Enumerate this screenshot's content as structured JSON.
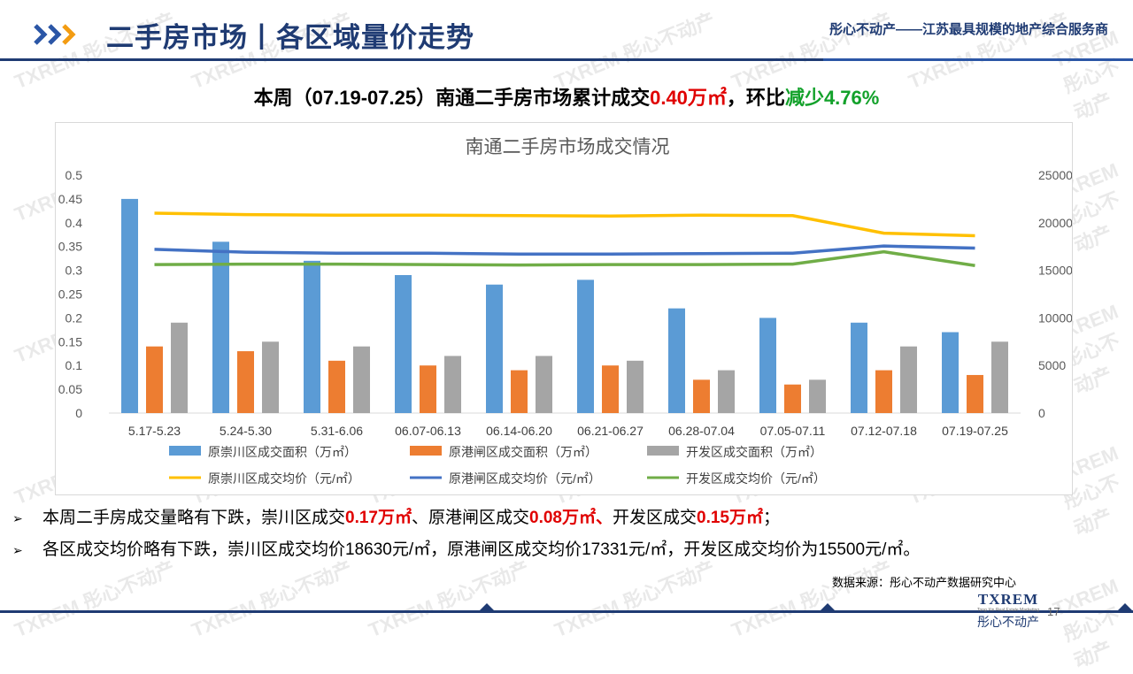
{
  "header": {
    "title": "二手房市场丨各区域量价走势",
    "tagline": "彤心不动产——江苏最具规模的地产综合服务商"
  },
  "headline": {
    "part1": "本周（07.19-07.25）南通二手房市场累计成交",
    "volume": "0.40万㎡",
    "part2": "，环比",
    "change": "减少4.76%"
  },
  "chart_data": {
    "type": "bar+line",
    "title": "南通二手房市场成交情况",
    "categories": [
      "5.17-5.23",
      "5.24-5.30",
      "5.31-6.06",
      "06.07-06.13",
      "06.14-06.20",
      "06.21-06.27",
      "06.28-07.04",
      "07.05-07.11",
      "07.12-07.18",
      "07.19-07.25"
    ],
    "y_left": {
      "min": 0,
      "max": 0.5,
      "ticks": [
        "0",
        "0.05",
        "0.1",
        "0.15",
        "0.2",
        "0.25",
        "0.3",
        "0.35",
        "0.4",
        "0.45",
        "0.5"
      ]
    },
    "y_right": {
      "min": 0,
      "max": 25000,
      "ticks": [
        "0",
        "5000",
        "10000",
        "15000",
        "20000",
        "25000"
      ]
    },
    "bar_series": [
      {
        "name": "原崇川区成交面积（万㎡）",
        "color": "#5b9bd5",
        "values": [
          0.45,
          0.36,
          0.32,
          0.29,
          0.27,
          0.28,
          0.22,
          0.2,
          0.19,
          0.17
        ]
      },
      {
        "name": "原港闸区成交面积（万㎡）",
        "color": "#ed7d31",
        "values": [
          0.14,
          0.13,
          0.11,
          0.1,
          0.09,
          0.1,
          0.07,
          0.06,
          0.09,
          0.08
        ]
      },
      {
        "name": "开发区成交面积（万㎡）",
        "color": "#a5a5a5",
        "values": [
          0.19,
          0.15,
          0.14,
          0.12,
          0.12,
          0.11,
          0.09,
          0.07,
          0.14,
          0.15
        ]
      }
    ],
    "line_series": [
      {
        "name": "原崇川区成交均价（元/㎡）",
        "color": "#ffc000",
        "values": [
          21000,
          20850,
          20800,
          20800,
          20750,
          20700,
          20800,
          20750,
          18900,
          18630
        ]
      },
      {
        "name": "原港闸区成交均价（元/㎡）",
        "color": "#4472c4",
        "values": [
          17200,
          16900,
          16800,
          16800,
          16700,
          16700,
          16750,
          16800,
          17550,
          17331
        ]
      },
      {
        "name": "开发区成交均价（元/㎡）",
        "color": "#70ad47",
        "values": [
          15600,
          15650,
          15650,
          15600,
          15550,
          15600,
          15600,
          15650,
          16950,
          15500
        ]
      }
    ],
    "legend_position": "bottom"
  },
  "bullets": [
    {
      "text1": "本周二手房成交量略有下跌，崇川区成交",
      "v1": "0.17万㎡",
      "text2": "、原港闸区成交",
      "v2": "0.08万㎡、",
      "text3": "开发区成交",
      "v3": "0.15万㎡",
      "text4": "；"
    },
    {
      "text": "各区成交均价略有下跌，崇川区成交均价18630元/㎡，原港闸区成交均价17331元/㎡，开发区成交均价为15500元/㎡。"
    }
  ],
  "source": "数据来源：彤心不动产数据研究中心",
  "footer": {
    "page_number": "17",
    "logo_main": "TXREM",
    "logo_sub": "Tong Xin Real Estate Marketing",
    "logo_cn": "彤心不动产"
  },
  "watermark_text": "TXREM 彤心不动产",
  "colors": {
    "brand": "#1f3b73",
    "highlight_red": "#e00000",
    "highlight_green": "#12a12a"
  }
}
